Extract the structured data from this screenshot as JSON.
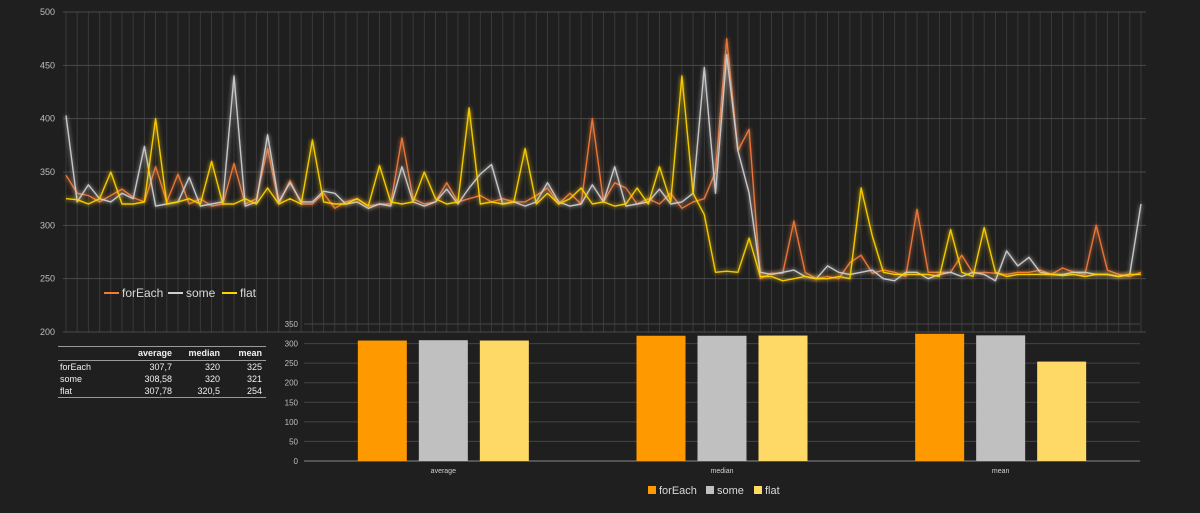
{
  "colors": {
    "forEach": "#ff9900",
    "some": "#c0c0c0",
    "flat": "#ffd966",
    "line_forEach": "#f07a3a",
    "line_some": "#cfcfcf",
    "line_flat": "#ffd200"
  },
  "chart_data": [
    {
      "type": "line",
      "ylim": [
        200,
        500
      ],
      "yticks": [
        200,
        250,
        300,
        350,
        400,
        450,
        500
      ],
      "grid": true,
      "legend_position": "bottom-left",
      "series": [
        {
          "name": "forEach",
          "values": [
            347,
            330,
            328,
            322,
            328,
            334,
            326,
            322,
            355,
            322,
            348,
            320,
            325,
            318,
            320,
            358,
            320,
            325,
            372,
            320,
            342,
            320,
            320,
            330,
            316,
            322,
            325,
            318,
            320,
            320,
            382,
            325,
            320,
            322,
            340,
            322,
            325,
            328,
            322,
            325,
            322,
            322,
            328,
            335,
            320,
            330,
            320,
            400,
            322,
            340,
            335,
            320,
            325,
            320,
            330,
            316,
            322,
            325,
            350,
            475,
            370,
            390,
            250,
            255,
            255,
            304,
            256,
            250,
            252,
            250,
            265,
            272,
            255,
            258,
            256,
            252,
            315,
            256,
            256,
            256,
            272,
            255,
            256,
            255,
            254,
            256,
            256,
            258,
            254,
            260,
            256,
            254,
            300,
            258,
            254,
            252,
            256
          ]
        },
        {
          "name": "some",
          "values": [
            403,
            322,
            338,
            325,
            322,
            330,
            325,
            374,
            318,
            320,
            322,
            345,
            318,
            320,
            322,
            440,
            318,
            322,
            385,
            322,
            340,
            322,
            322,
            332,
            330,
            320,
            322,
            316,
            320,
            318,
            355,
            322,
            318,
            322,
            334,
            320,
            335,
            348,
            357,
            320,
            322,
            318,
            322,
            340,
            322,
            318,
            320,
            338,
            322,
            355,
            318,
            320,
            322,
            334,
            320,
            322,
            330,
            448,
            330,
            460,
            370,
            330,
            256,
            254,
            256,
            258,
            252,
            250,
            262,
            256,
            254,
            256,
            258,
            250,
            248,
            256,
            256,
            250,
            254,
            256,
            252,
            256,
            254,
            248,
            276,
            262,
            270,
            256,
            254,
            254,
            256,
            256,
            254,
            254,
            252,
            254,
            320
          ]
        },
        {
          "name": "flat",
          "values": [
            325,
            324,
            320,
            325,
            350,
            320,
            320,
            322,
            400,
            320,
            322,
            325,
            320,
            360,
            320,
            320,
            325,
            320,
            335,
            320,
            325,
            320,
            380,
            322,
            320,
            320,
            325,
            318,
            356,
            322,
            320,
            322,
            350,
            325,
            320,
            322,
            410,
            320,
            322,
            320,
            322,
            372,
            320,
            330,
            320,
            325,
            335,
            320,
            322,
            318,
            320,
            335,
            320,
            355,
            322,
            440,
            330,
            310,
            256,
            257,
            256,
            288,
            252,
            252,
            248,
            250,
            252,
            250,
            250,
            252,
            250,
            335,
            290,
            256,
            254,
            254,
            254,
            254,
            252,
            296,
            256,
            252,
            298,
            256,
            252,
            254,
            254,
            254,
            254,
            253,
            254,
            252,
            254,
            254,
            252,
            254,
            254
          ]
        }
      ]
    },
    {
      "type": "bar",
      "categories": [
        "average",
        "median",
        "mean"
      ],
      "ylim": [
        0,
        350
      ],
      "yticks": [
        0,
        50,
        100,
        150,
        200,
        250,
        300,
        350
      ],
      "grid": true,
      "legend_position": "bottom",
      "series": [
        {
          "name": "forEach",
          "values": [
            307.7,
            320,
            325
          ]
        },
        {
          "name": "some",
          "values": [
            308.58,
            320,
            321
          ]
        },
        {
          "name": "flat",
          "values": [
            307.78,
            320.5,
            254
          ]
        }
      ]
    }
  ],
  "table": {
    "headers": [
      "average",
      "median",
      "mean"
    ],
    "rows": [
      {
        "label": "forEach",
        "average": "307,7",
        "median": "320",
        "mean": "325"
      },
      {
        "label": "some",
        "average": "308,58",
        "median": "320",
        "mean": "321"
      },
      {
        "label": "flat",
        "average": "307,78",
        "median": "320,5",
        "mean": "254"
      }
    ]
  }
}
